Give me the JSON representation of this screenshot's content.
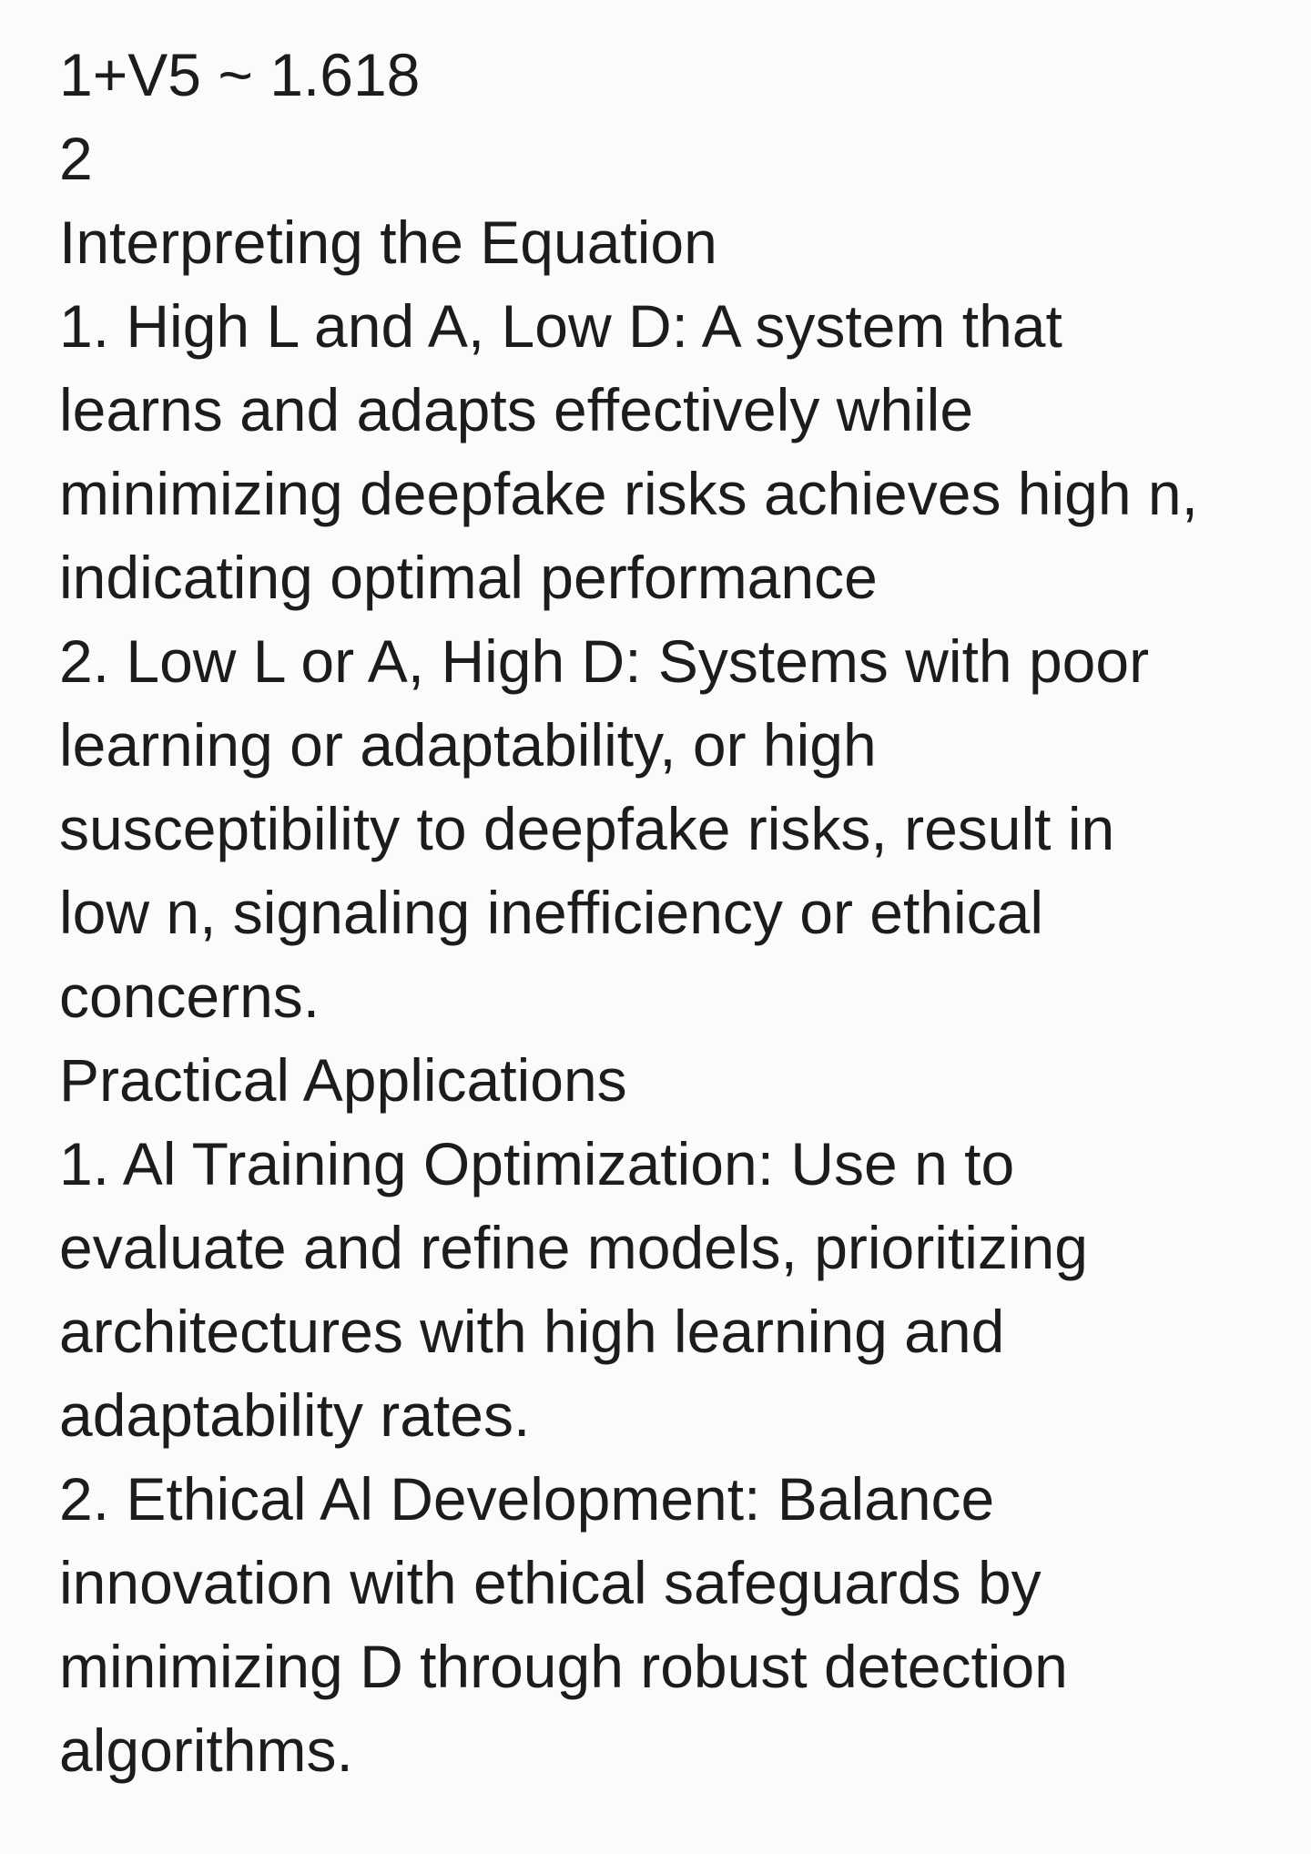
{
  "document": {
    "equation": {
      "numerator": "1+V5 ~ 1.618",
      "denominator": "2"
    },
    "interpreting": {
      "heading": "Interpreting the Equation",
      "item1": [
        "1. High L and A, Low D: A system that",
        "learns and adapts effectively while",
        "minimizing deepfake risks achieves high n,",
        "indicating optimal performance"
      ],
      "item2": [
        "2. Low L or A, High D: Systems with poor",
        "learning or adaptability, or high",
        "susceptibility to deepfake risks, result in",
        "low n, signaling inefficiency or ethical",
        "concerns."
      ]
    },
    "applications": {
      "heading": "Practical Applications",
      "item1": [
        "1. Al Training Optimization: Use n to",
        "evaluate and refine models, prioritizing",
        "architectures with high learning and",
        "adaptability rates."
      ],
      "item2": [
        "2. Ethical Al Development: Balance",
        "innovation with ethical safeguards by",
        "minimizing D through robust detection",
        "algorithms."
      ]
    }
  }
}
